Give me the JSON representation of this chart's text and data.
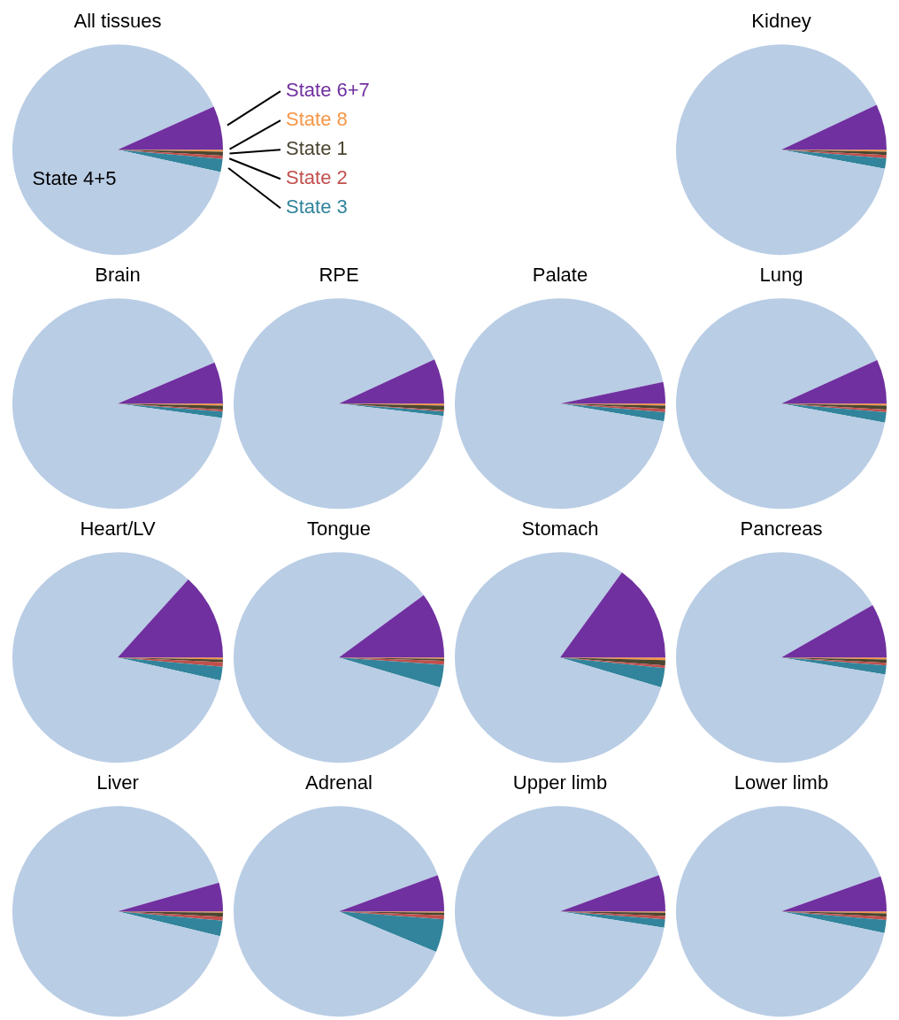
{
  "chart_data": [
    {
      "type": "pie",
      "title": "All tissues",
      "categories": [
        "State 8",
        "State 1",
        "State 2",
        "State 3",
        "State 4+5",
        "State 6+7"
      ],
      "values": [
        0.3,
        0.6,
        0.5,
        2.0,
        89.9,
        6.7
      ],
      "colors": [
        "#f79646",
        "#4a4530",
        "#c0504d",
        "#31849b",
        "#b9cde5",
        "#7030a0"
      ]
    },
    {
      "type": "pie",
      "title": "Kidney",
      "categories": [
        null,
        null,
        null,
        null,
        null,
        null
      ],
      "values": [
        0.3,
        0.5,
        0.5,
        1.6,
        90.1,
        7.0
      ],
      "colors": [
        "#f79646",
        "#4a4530",
        "#c0504d",
        "#31849b",
        "#b9cde5",
        "#7030a0"
      ]
    },
    {
      "type": "pie",
      "title": "Brain",
      "categories": [
        null,
        null,
        null,
        null,
        null,
        null
      ],
      "values": [
        0.3,
        0.6,
        0.3,
        1.0,
        91.4,
        6.4
      ],
      "colors": [
        "#f79646",
        "#4a4530",
        "#c0504d",
        "#31849b",
        "#b9cde5",
        "#7030a0"
      ]
    },
    {
      "type": "pie",
      "title": "RPE",
      "categories": [
        null,
        null,
        null,
        null,
        null,
        null
      ],
      "values": [
        0.3,
        0.7,
        0.2,
        0.7,
        91.2,
        6.9
      ],
      "colors": [
        "#f79646",
        "#4a4530",
        "#c0504d",
        "#31849b",
        "#b9cde5",
        "#7030a0"
      ]
    },
    {
      "type": "pie",
      "title": "Palate",
      "categories": [
        null,
        null,
        null,
        null,
        null,
        null
      ],
      "values": [
        0.3,
        0.5,
        0.5,
        1.4,
        94.0,
        3.3
      ],
      "colors": [
        "#f79646",
        "#4a4530",
        "#c0504d",
        "#31849b",
        "#b9cde5",
        "#7030a0"
      ]
    },
    {
      "type": "pie",
      "title": "Lung",
      "categories": [
        null,
        null,
        null,
        null,
        null,
        null
      ],
      "values": [
        0.3,
        0.6,
        0.4,
        1.6,
        90.3,
        6.8
      ],
      "colors": [
        "#f79646",
        "#4a4530",
        "#c0504d",
        "#31849b",
        "#b9cde5",
        "#7030a0"
      ]
    },
    {
      "type": "pie",
      "title": "Heart/LV",
      "categories": [
        null,
        null,
        null,
        null,
        null,
        null
      ],
      "values": [
        0.3,
        0.4,
        0.7,
        2.1,
        83.2,
        13.3
      ],
      "colors": [
        "#f79646",
        "#4a4530",
        "#c0504d",
        "#31849b",
        "#b9cde5",
        "#7030a0"
      ]
    },
    {
      "type": "pie",
      "title": "Tongue",
      "categories": [
        null,
        null,
        null,
        null,
        null,
        null
      ],
      "values": [
        0.2,
        0.3,
        0.6,
        3.5,
        85.3,
        10.1
      ],
      "colors": [
        "#f79646",
        "#4a4530",
        "#c0504d",
        "#31849b",
        "#b9cde5",
        "#7030a0"
      ]
    },
    {
      "type": "pie",
      "title": "Stomach",
      "categories": [
        null,
        null,
        null,
        null,
        null,
        null
      ],
      "values": [
        0.4,
        0.8,
        0.4,
        3.0,
        80.4,
        15.0
      ],
      "colors": [
        "#f79646",
        "#4a4530",
        "#c0504d",
        "#31849b",
        "#b9cde5",
        "#7030a0"
      ]
    },
    {
      "type": "pie",
      "title": "Pancreas",
      "categories": [
        null,
        null,
        null,
        null,
        null,
        null
      ],
      "values": [
        0.3,
        0.5,
        0.4,
        1.4,
        89.1,
        8.3
      ],
      "colors": [
        "#f79646",
        "#4a4530",
        "#c0504d",
        "#31849b",
        "#b9cde5",
        "#7030a0"
      ]
    },
    {
      "type": "pie",
      "title": "Liver",
      "categories": [
        null,
        null,
        null,
        null,
        null,
        null
      ],
      "values": [
        0.2,
        0.6,
        0.6,
        2.4,
        91.8,
        4.4
      ],
      "colors": [
        "#f79646",
        "#4a4530",
        "#c0504d",
        "#31849b",
        "#b9cde5",
        "#7030a0"
      ]
    },
    {
      "type": "pie",
      "title": "Adrenal",
      "categories": [
        null,
        null,
        null,
        null,
        null,
        null
      ],
      "values": [
        0.2,
        0.4,
        0.6,
        5.1,
        88.1,
        5.6
      ],
      "colors": [
        "#f79646",
        "#4a4530",
        "#c0504d",
        "#31849b",
        "#b9cde5",
        "#7030a0"
      ]
    },
    {
      "type": "pie",
      "title": "Upper limb",
      "categories": [
        null,
        null,
        null,
        null,
        null,
        null
      ],
      "values": [
        0.2,
        0.5,
        0.5,
        1.3,
        91.9,
        5.6
      ],
      "colors": [
        "#f79646",
        "#4a4530",
        "#c0504d",
        "#31849b",
        "#b9cde5",
        "#7030a0"
      ]
    },
    {
      "type": "pie",
      "title": "Lower limb",
      "categories": [
        null,
        null,
        null,
        null,
        null,
        null
      ],
      "values": [
        0.3,
        0.5,
        0.5,
        2.0,
        91.3,
        5.4
      ],
      "colors": [
        "#f79646",
        "#4a4530",
        "#c0504d",
        "#31849b",
        "#b9cde5",
        "#7030a0"
      ]
    }
  ]
}
